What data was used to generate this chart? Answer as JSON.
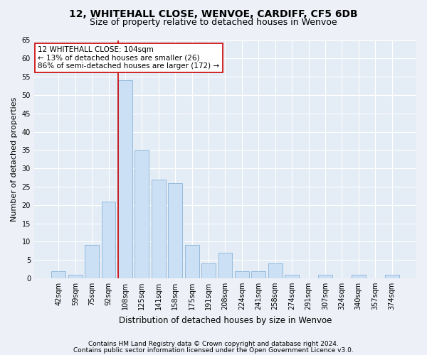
{
  "title1": "12, WHITEHALL CLOSE, WENVOE, CARDIFF, CF5 6DB",
  "title2": "Size of property relative to detached houses in Wenvoe",
  "xlabel": "Distribution of detached houses by size in Wenvoe",
  "ylabel": "Number of detached properties",
  "categories": [
    "42sqm",
    "59sqm",
    "75sqm",
    "92sqm",
    "108sqm",
    "125sqm",
    "141sqm",
    "158sqm",
    "175sqm",
    "191sqm",
    "208sqm",
    "224sqm",
    "241sqm",
    "258sqm",
    "274sqm",
    "291sqm",
    "307sqm",
    "324sqm",
    "340sqm",
    "357sqm",
    "374sqm"
  ],
  "values": [
    2,
    1,
    9,
    21,
    54,
    35,
    27,
    26,
    9,
    4,
    7,
    2,
    2,
    4,
    1,
    0,
    1,
    0,
    1,
    0,
    1
  ],
  "bar_color": "#cce0f5",
  "bar_edge_color": "#8ab4d8",
  "marker_line_color": "#cc0000",
  "annotation_line1": "12 WHITEHALL CLOSE: 104sqm",
  "annotation_line2": "← 13% of detached houses are smaller (26)",
  "annotation_line3": "86% of semi-detached houses are larger (172) →",
  "annotation_box_color": "#ffffff",
  "annotation_box_edge": "#cc0000",
  "ylim": [
    0,
    65
  ],
  "yticks": [
    0,
    5,
    10,
    15,
    20,
    25,
    30,
    35,
    40,
    45,
    50,
    55,
    60,
    65
  ],
  "footnote1": "Contains HM Land Registry data © Crown copyright and database right 2024.",
  "footnote2": "Contains public sector information licensed under the Open Government Licence v3.0.",
  "bg_color": "#edf1f7",
  "plot_bg_color": "#e4ecf5",
  "grid_color": "#ffffff",
  "title1_fontsize": 10,
  "title2_fontsize": 9,
  "xlabel_fontsize": 8.5,
  "ylabel_fontsize": 8,
  "tick_fontsize": 7,
  "footnote_fontsize": 6.5,
  "annot_fontsize": 7.5
}
